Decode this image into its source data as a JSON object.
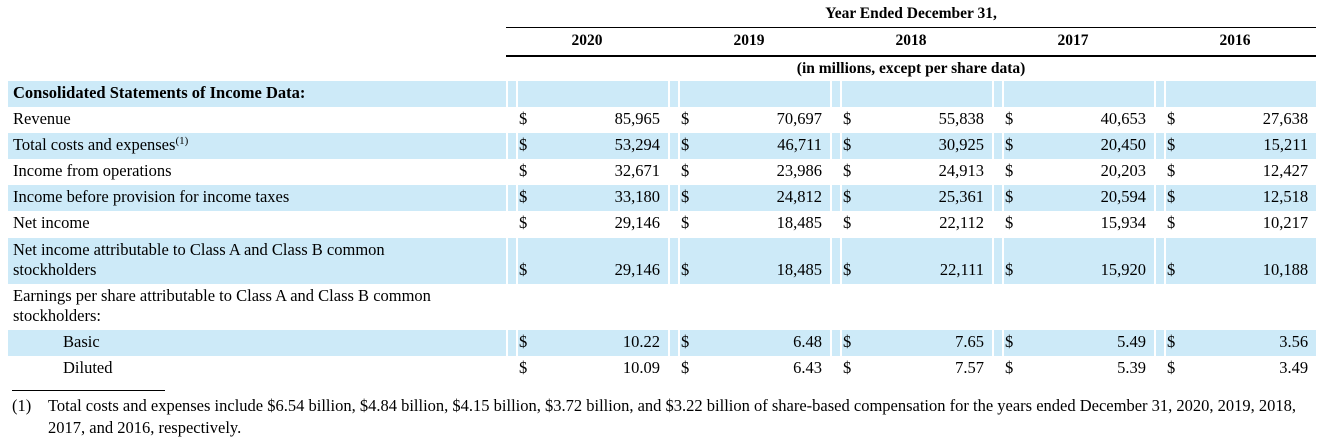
{
  "header": {
    "group_title": "Year Ended December 31,",
    "years": [
      "2020",
      "2019",
      "2018",
      "2017",
      "2016"
    ],
    "units_note": "(in millions, except per share data)"
  },
  "table": {
    "currency_symbol": "$",
    "highlight_color": "#cdeaf8",
    "text_color": "#000000",
    "rows": [
      {
        "label": "Consolidated Statements of Income Data:",
        "bold": true,
        "highlight": true,
        "values": null
      },
      {
        "label": "Revenue",
        "highlight": false,
        "values": [
          "85,965",
          "70,697",
          "55,838",
          "40,653",
          "27,638"
        ]
      },
      {
        "label": "Total costs and expenses",
        "sup": "(1)",
        "highlight": true,
        "values": [
          "53,294",
          "46,711",
          "30,925",
          "20,450",
          "15,211"
        ]
      },
      {
        "label": "Income from operations",
        "highlight": false,
        "values": [
          "32,671",
          "23,986",
          "24,913",
          "20,203",
          "12,427"
        ]
      },
      {
        "label": "Income before provision for income taxes",
        "highlight": true,
        "values": [
          "33,180",
          "24,812",
          "25,361",
          "20,594",
          "12,518"
        ]
      },
      {
        "label": "Net income",
        "highlight": false,
        "values": [
          "29,146",
          "18,485",
          "22,112",
          "15,934",
          "10,217"
        ]
      },
      {
        "label": "Net income attributable to Class A and Class B common stockholders",
        "highlight": true,
        "values": [
          "29,146",
          "18,485",
          "22,111",
          "15,920",
          "10,188"
        ]
      },
      {
        "label": "Earnings per share attributable to Class A and Class B common stockholders:",
        "highlight": false,
        "values": null
      },
      {
        "label": "Basic",
        "highlight": true,
        "indent": true,
        "values": [
          "10.22",
          "6.48",
          "7.65",
          "5.49",
          "3.56"
        ]
      },
      {
        "label": "Diluted",
        "highlight": false,
        "indent": true,
        "values": [
          "10.09",
          "6.43",
          "7.57",
          "5.39",
          "3.49"
        ]
      }
    ]
  },
  "footnote": {
    "marker": "(1)",
    "text": "Total costs and expenses include $6.54 billion, $4.84 billion, $4.15 billion, $3.72 billion, and $3.22 billion of share-based compensation for the years ended December 31, 2020, 2019, 2018, 2017, and 2016, respectively."
  }
}
